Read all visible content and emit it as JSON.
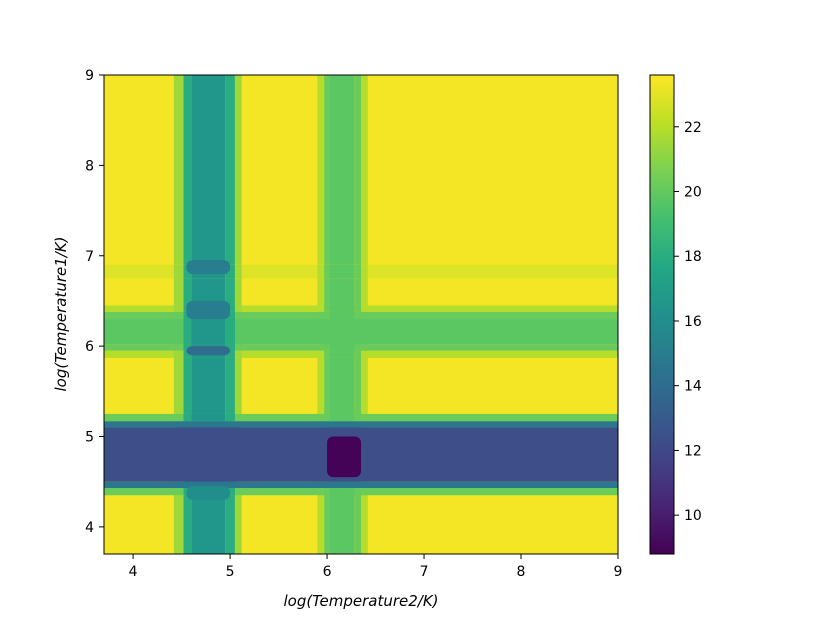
{
  "chart_data": {
    "type": "heatmap",
    "title": "",
    "xlabel": "log(Temperature2/K)",
    "ylabel": "log(Temperature1/K)",
    "xlim": [
      3.7,
      9.0
    ],
    "ylim": [
      3.7,
      9.0
    ],
    "x_ticks": [
      "4",
      "5",
      "6",
      "7",
      "8",
      "9"
    ],
    "y_ticks": [
      "4",
      "5",
      "6",
      "7",
      "8",
      "9"
    ],
    "colormap": "viridis",
    "colorbar": {
      "min": 8.8,
      "max": 23.6,
      "ticks": [
        "10",
        "12",
        "14",
        "16",
        "18",
        "20",
        "22"
      ]
    },
    "background_level": 23.4,
    "column_profile": [
      {
        "x": 3.7,
        "value": 23.4
      },
      {
        "x": 4.42,
        "value": 23.4
      },
      {
        "x": 4.52,
        "value": 19.5
      },
      {
        "x": 4.6,
        "value": 16.5
      },
      {
        "x": 4.95,
        "value": 16.5
      },
      {
        "x": 5.05,
        "value": 19.5
      },
      {
        "x": 5.12,
        "value": 23.4
      },
      {
        "x": 5.9,
        "value": 23.4
      },
      {
        "x": 5.97,
        "value": 20.5
      },
      {
        "x": 6.03,
        "value": 19.8
      },
      {
        "x": 6.28,
        "value": 19.8
      },
      {
        "x": 6.35,
        "value": 20.5
      },
      {
        "x": 6.42,
        "value": 23.4
      },
      {
        "x": 9.0,
        "value": 23.4
      }
    ],
    "row_profile": [
      {
        "y": 3.7,
        "value": 23.4
      },
      {
        "y": 4.35,
        "value": 23.4
      },
      {
        "y": 4.43,
        "value": 17.0
      },
      {
        "y": 4.5,
        "value": 12.3
      },
      {
        "y": 5.1,
        "value": 12.3
      },
      {
        "y": 5.17,
        "value": 17.0
      },
      {
        "y": 5.25,
        "value": 23.4
      },
      {
        "y": 5.87,
        "value": 23.4
      },
      {
        "y": 5.95,
        "value": 20.5
      },
      {
        "y": 6.02,
        "value": 19.8
      },
      {
        "y": 6.3,
        "value": 19.8
      },
      {
        "y": 6.38,
        "value": 20.5
      },
      {
        "y": 6.45,
        "value": 23.4
      },
      {
        "y": 6.75,
        "value": 23.4
      },
      {
        "y": 6.82,
        "value": 22.3
      },
      {
        "y": 6.9,
        "value": 23.4
      },
      {
        "y": 9.0,
        "value": 23.4
      }
    ],
    "features": [
      {
        "x": [
          6.0,
          6.35
        ],
        "y": [
          4.55,
          5.0
        ],
        "value": 8.9
      },
      {
        "x": [
          4.55,
          5.0
        ],
        "y": [
          5.9,
          6.0
        ],
        "value": 14.0
      },
      {
        "x": [
          4.55,
          5.0
        ],
        "y": [
          6.3,
          6.5
        ],
        "value": 15.0
      },
      {
        "x": [
          4.55,
          5.0
        ],
        "y": [
          6.8,
          6.95
        ],
        "value": 15.0
      },
      {
        "x": [
          4.55,
          5.0
        ],
        "y": [
          4.3,
          4.45
        ],
        "value": 16.0
      }
    ]
  }
}
